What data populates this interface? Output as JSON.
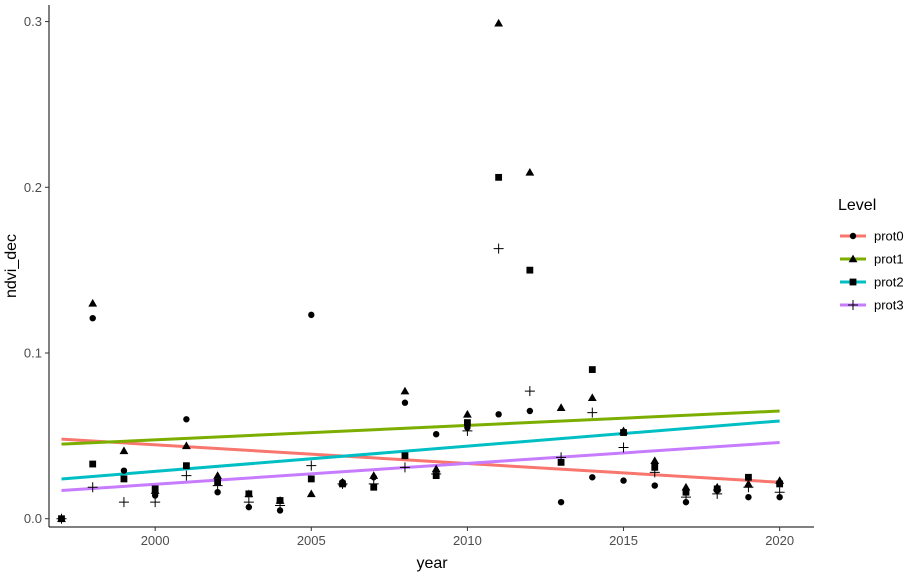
{
  "chart_data": {
    "type": "scatter",
    "xlabel": "year",
    "ylabel": "ndvi_dec",
    "xlim": [
      1996.6,
      2021.1
    ],
    "ylim": [
      -0.005,
      0.31
    ],
    "x_ticks": [
      2000,
      2005,
      2010,
      2015,
      2020
    ],
    "y_ticks": [
      0.0,
      0.1,
      0.2,
      0.3
    ],
    "x_tick_labels": [
      "2000",
      "2005",
      "2010",
      "2015",
      "2020"
    ],
    "y_tick_labels": [
      "0.0",
      "0.1",
      "0.2",
      "0.3"
    ],
    "grid": false,
    "legend": {
      "title": "Level",
      "position": "right"
    },
    "series": [
      {
        "name": "prot0",
        "marker": "circle",
        "color": "#F8766D",
        "trend": [
          [
            1997,
            0.048
          ],
          [
            2020,
            0.022
          ]
        ],
        "points": [
          [
            1997,
            0.0
          ],
          [
            1998,
            0.121
          ],
          [
            1999,
            0.029
          ],
          [
            2000,
            0.014
          ],
          [
            2001,
            0.06
          ],
          [
            2002,
            0.016
          ],
          [
            2003,
            0.007
          ],
          [
            2004,
            0.005
          ],
          [
            2005,
            0.123
          ],
          [
            2006,
            0.022
          ],
          [
            2007,
            0.025
          ],
          [
            2008,
            0.07
          ],
          [
            2009,
            0.051
          ],
          [
            2010,
            0.055
          ],
          [
            2011,
            0.063
          ],
          [
            2012,
            0.065
          ],
          [
            2013,
            0.01
          ],
          [
            2014,
            0.025
          ],
          [
            2015,
            0.023
          ],
          [
            2016,
            0.02
          ],
          [
            2017,
            0.01
          ],
          [
            2018,
            0.017
          ],
          [
            2019,
            0.013
          ],
          [
            2020,
            0.013
          ]
        ]
      },
      {
        "name": "prot1",
        "marker": "triangle",
        "color": "#7CAE00",
        "trend": [
          [
            1997,
            0.045
          ],
          [
            2020,
            0.065
          ]
        ],
        "points": [
          [
            1997,
            0.0
          ],
          [
            1998,
            0.13
          ],
          [
            1999,
            0.041
          ],
          [
            2000,
            0.017
          ],
          [
            2001,
            0.044
          ],
          [
            2002,
            0.026
          ],
          [
            2003,
            0.015
          ],
          [
            2004,
            0.011
          ],
          [
            2005,
            0.015
          ],
          [
            2006,
            0.022
          ],
          [
            2007,
            0.026
          ],
          [
            2008,
            0.077
          ],
          [
            2009,
            0.03
          ],
          [
            2010,
            0.063
          ],
          [
            2011,
            0.299
          ],
          [
            2012,
            0.209
          ],
          [
            2013,
            0.067
          ],
          [
            2014,
            0.073
          ],
          [
            2015,
            0.053
          ],
          [
            2016,
            0.035
          ],
          [
            2017,
            0.019
          ],
          [
            2018,
            0.019
          ],
          [
            2019,
            0.021
          ],
          [
            2020,
            0.023
          ]
        ]
      },
      {
        "name": "prot2",
        "marker": "square",
        "color": "#00BFC4",
        "trend": [
          [
            1997,
            0.024
          ],
          [
            2020,
            0.059
          ]
        ],
        "points": [
          [
            1997,
            0.0
          ],
          [
            1998,
            0.033
          ],
          [
            1999,
            0.024
          ],
          [
            2000,
            0.018
          ],
          [
            2001,
            0.032
          ],
          [
            2002,
            0.022
          ],
          [
            2003,
            0.015
          ],
          [
            2004,
            0.011
          ],
          [
            2005,
            0.024
          ],
          [
            2006,
            0.021
          ],
          [
            2007,
            0.019
          ],
          [
            2008,
            0.038
          ],
          [
            2009,
            0.026
          ],
          [
            2010,
            0.058
          ],
          [
            2011,
            0.206
          ],
          [
            2012,
            0.15
          ],
          [
            2013,
            0.034
          ],
          [
            2014,
            0.09
          ],
          [
            2015,
            0.052
          ],
          [
            2016,
            0.031
          ],
          [
            2017,
            0.016
          ],
          [
            2018,
            0.018
          ],
          [
            2019,
            0.025
          ],
          [
            2020,
            0.021
          ]
        ]
      },
      {
        "name": "prot3",
        "marker": "plus",
        "color": "#C77CFF",
        "trend": [
          [
            1997,
            0.017
          ],
          [
            2020,
            0.046
          ]
        ],
        "points": [
          [
            1997,
            0.0
          ],
          [
            1998,
            0.019
          ],
          [
            1999,
            0.01
          ],
          [
            2000,
            0.01
          ],
          [
            2001,
            0.026
          ],
          [
            2002,
            0.02
          ],
          [
            2003,
            0.01
          ],
          [
            2004,
            0.008
          ],
          [
            2005,
            0.032
          ],
          [
            2006,
            0.021
          ],
          [
            2007,
            0.021
          ],
          [
            2008,
            0.031
          ],
          [
            2009,
            0.027
          ],
          [
            2010,
            0.053
          ],
          [
            2011,
            0.163
          ],
          [
            2012,
            0.077
          ],
          [
            2013,
            0.037
          ],
          [
            2014,
            0.064
          ],
          [
            2015,
            0.043
          ],
          [
            2016,
            0.028
          ],
          [
            2017,
            0.013
          ],
          [
            2018,
            0.015
          ],
          [
            2019,
            0.019
          ],
          [
            2020,
            0.016
          ]
        ]
      }
    ]
  }
}
